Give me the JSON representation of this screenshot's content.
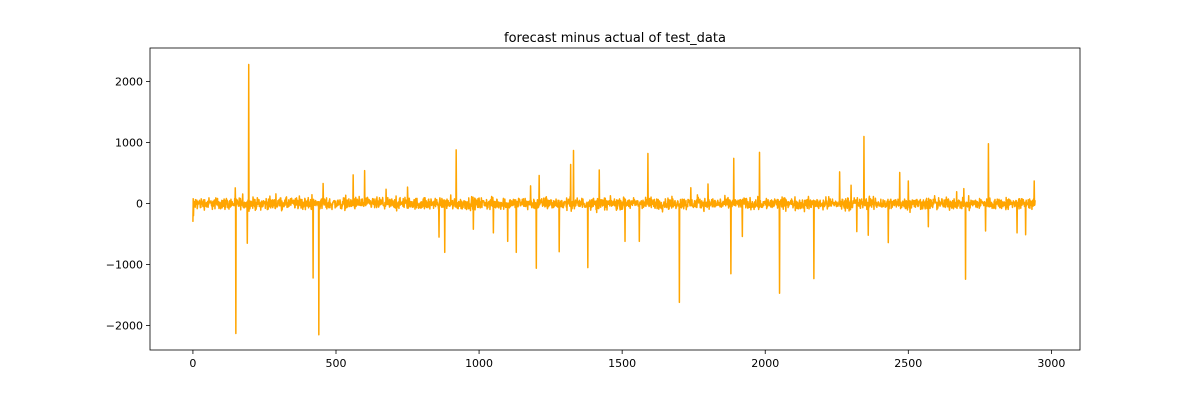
{
  "chart_data": {
    "type": "line",
    "title": "forecast minus actual of test_data",
    "xlabel": "",
    "ylabel": "",
    "xlim": [
      -150,
      3100
    ],
    "ylim": [
      -2400,
      2550
    ],
    "x_ticks": [
      0,
      500,
      1000,
      1500,
      2000,
      2500,
      3000
    ],
    "y_ticks": [
      -2000,
      -1000,
      0,
      1000,
      2000
    ],
    "grid": false,
    "legend": "none",
    "series": [
      {
        "color": "#FFA500",
        "n_points": 2944,
        "noise_amplitude": 140,
        "spikes": [
          [
            150,
            -2130
          ],
          [
            190,
            -650
          ],
          [
            195,
            2280
          ],
          [
            420,
            -1220
          ],
          [
            440,
            -2150
          ],
          [
            455,
            330
          ],
          [
            560,
            470
          ],
          [
            600,
            540
          ],
          [
            750,
            270
          ],
          [
            860,
            -550
          ],
          [
            880,
            -800
          ],
          [
            920,
            880
          ],
          [
            980,
            -420
          ],
          [
            1050,
            -480
          ],
          [
            1100,
            -620
          ],
          [
            1130,
            -800
          ],
          [
            1180,
            290
          ],
          [
            1200,
            -1060
          ],
          [
            1210,
            460
          ],
          [
            1280,
            -790
          ],
          [
            1320,
            640
          ],
          [
            1330,
            870
          ],
          [
            1380,
            -1050
          ],
          [
            1420,
            550
          ],
          [
            1510,
            -620
          ],
          [
            1560,
            -620
          ],
          [
            1590,
            820
          ],
          [
            1700,
            -1620
          ],
          [
            1740,
            260
          ],
          [
            1800,
            320
          ],
          [
            1880,
            -1150
          ],
          [
            1890,
            740
          ],
          [
            1920,
            -540
          ],
          [
            1980,
            840
          ],
          [
            2050,
            -1470
          ],
          [
            2170,
            -1230
          ],
          [
            2260,
            520
          ],
          [
            2300,
            300
          ],
          [
            2320,
            -460
          ],
          [
            2345,
            1100
          ],
          [
            2360,
            -520
          ],
          [
            2430,
            -640
          ],
          [
            2470,
            510
          ],
          [
            2500,
            370
          ],
          [
            2570,
            -380
          ],
          [
            2700,
            -1240
          ],
          [
            2770,
            -450
          ],
          [
            2780,
            980
          ],
          [
            2880,
            -480
          ],
          [
            2910,
            -510
          ],
          [
            2940,
            370
          ]
        ]
      }
    ]
  }
}
